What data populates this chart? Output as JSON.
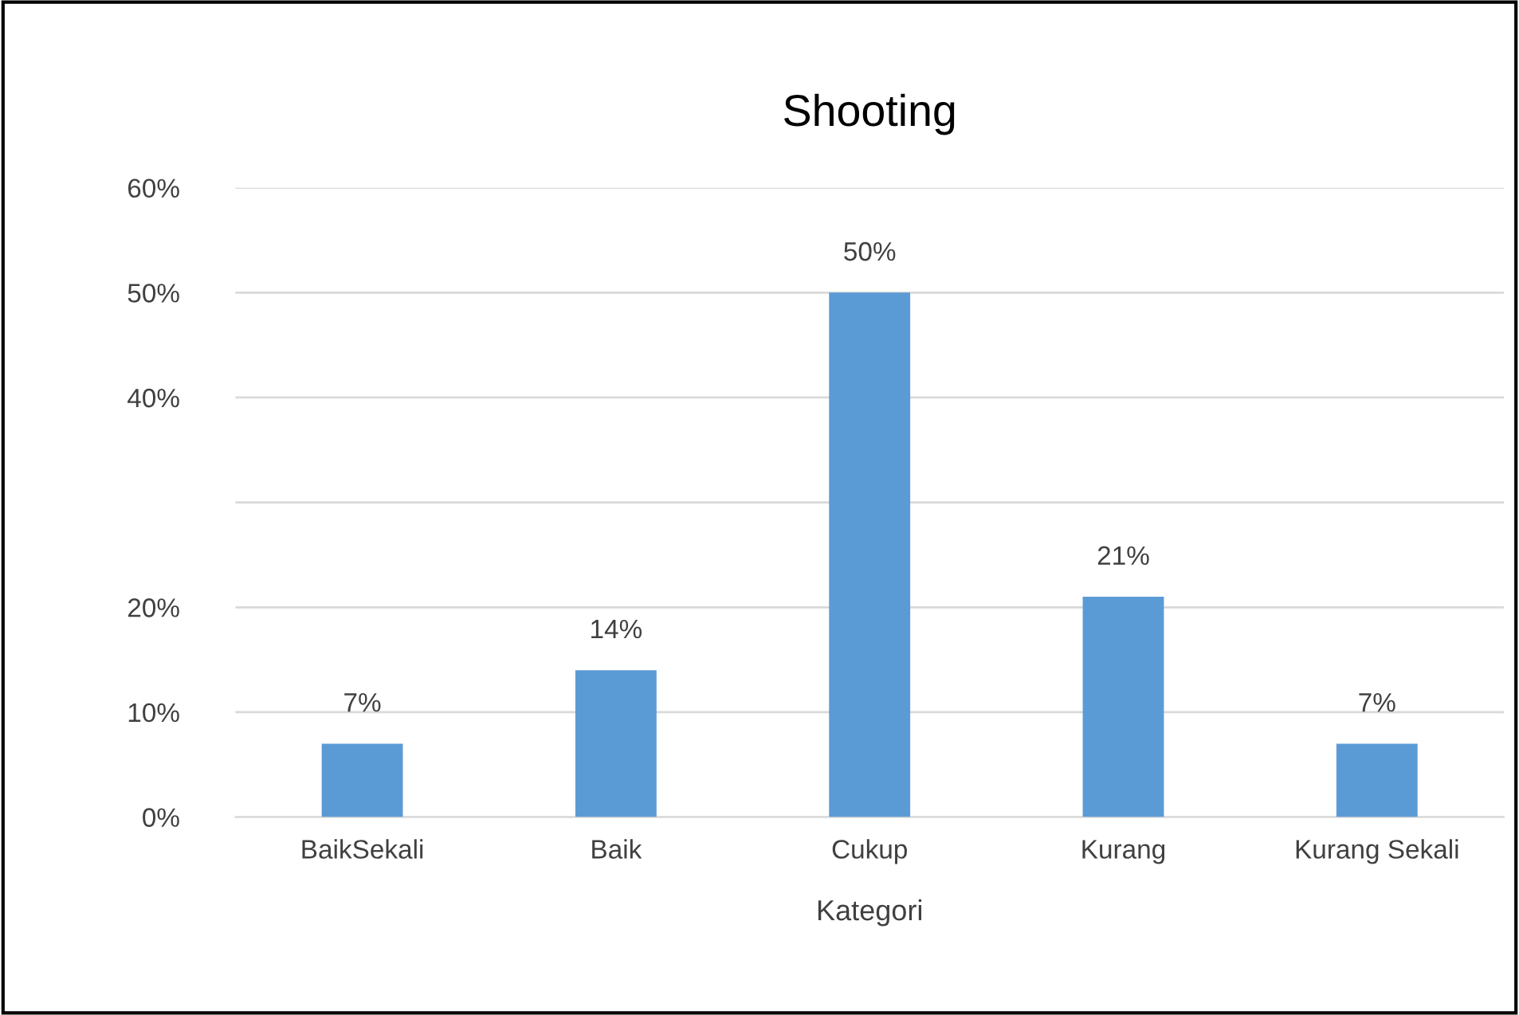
{
  "chart_data": {
    "type": "bar",
    "title": "Shooting",
    "xlabel": "Kategori",
    "categories": [
      "BaikSekali",
      "Baik",
      "Cukup",
      "Kurang",
      "Kurang Sekali"
    ],
    "values": [
      7,
      14,
      50,
      21,
      7
    ],
    "value_labels": [
      "7%",
      "14%",
      "50%",
      "21%",
      "7%"
    ],
    "color": "#5b9bd5",
    "ylim": [
      0,
      60
    ],
    "yticks": [
      {
        "value": 0,
        "label": "0%"
      },
      {
        "value": 10,
        "label": "10%"
      },
      {
        "value": 20,
        "label": "20%"
      },
      {
        "value": 30,
        "label": null
      },
      {
        "value": 40,
        "label": "40%"
      },
      {
        "value": 50,
        "label": "50%"
      },
      {
        "value": 60,
        "label": "60%"
      }
    ],
    "grid": "y"
  }
}
